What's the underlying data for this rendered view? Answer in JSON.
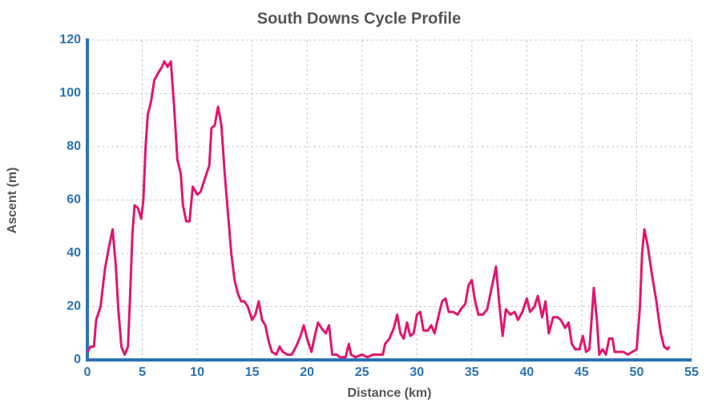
{
  "chart_data": {
    "type": "line",
    "title": "South Downs Cycle Profile",
    "x_label": "Distance (km)",
    "y_label": "Ascent (m)",
    "xlim": [
      0,
      55
    ],
    "xticks": [
      0,
      5,
      10,
      15,
      20,
      25,
      30,
      35,
      40,
      45,
      50,
      55
    ],
    "ylim": [
      0,
      120
    ],
    "yticks": [
      0,
      20,
      40,
      60,
      80,
      100,
      120
    ],
    "grid": true,
    "x": [
      0,
      0.3,
      0.6,
      0.8,
      1.2,
      1.6,
      2,
      2.3,
      2.6,
      2.8,
      3.1,
      3.4,
      3.7,
      3.9,
      4.1,
      4.3,
      4.6,
      4.9,
      5.1,
      5.3,
      5.5,
      5.8,
      6.1,
      6.5,
      6.8,
      7.0,
      7.3,
      7.6,
      7.9,
      8.2,
      8.5,
      8.7,
      9.0,
      9.3,
      9.6,
      10.0,
      10.3,
      10.7,
      11.1,
      11.3,
      11.6,
      11.9,
      12.2,
      12.5,
      12.8,
      13.1,
      13.4,
      13.7,
      14.0,
      14.3,
      14.6,
      15.0,
      15.3,
      15.6,
      15.9,
      16.2,
      16.5,
      16.8,
      17.2,
      17.5,
      17.8,
      18.2,
      18.6,
      19.0,
      19.4,
      19.7,
      20.0,
      20.4,
      20.7,
      21.0,
      21.3,
      21.7,
      22.0,
      22.3,
      22.7,
      23.0,
      23.5,
      23.8,
      24.0,
      24.4,
      25.0,
      25.5,
      26.0,
      26.5,
      26.9,
      27.1,
      27.5,
      27.9,
      28.2,
      28.5,
      28.8,
      29.1,
      29.4,
      29.7,
      30.0,
      30.3,
      30.6,
      31.0,
      31.3,
      31.6,
      32.0,
      32.3,
      32.6,
      32.9,
      33.3,
      33.7,
      34.0,
      34.4,
      34.7,
      35.0,
      35.3,
      35.6,
      36.0,
      36.4,
      36.8,
      37.2,
      37.5,
      37.8,
      38.1,
      38.5,
      38.9,
      39.2,
      39.6,
      40.0,
      40.3,
      40.7,
      41.0,
      41.4,
      41.7,
      42.0,
      42.4,
      42.8,
      43.1,
      43.5,
      43.8,
      44.1,
      44.4,
      44.8,
      45.1,
      45.4,
      45.7,
      45.9,
      46.1,
      46.4,
      46.6,
      46.9,
      47.2,
      47.5,
      47.8,
      48.0,
      48.4,
      48.8,
      49.2,
      49.6,
      50.0,
      50.3,
      50.5,
      50.7,
      51.0,
      51.4,
      51.8,
      52.2,
      52.5,
      52.8,
      53.0
    ],
    "series": [
      {
        "name": "Ascent",
        "color": "#e0166e",
        "values": [
          3,
          5,
          5,
          15,
          20,
          34,
          43,
          49,
          35,
          20,
          5,
          2,
          5,
          25,
          47,
          58,
          57,
          53,
          60,
          80,
          92,
          97,
          105,
          108,
          110,
          112,
          110,
          112,
          95,
          75,
          70,
          58,
          52,
          52,
          65,
          62,
          63,
          68,
          73,
          87,
          88,
          95,
          88,
          70,
          55,
          40,
          30,
          25,
          22,
          22,
          20,
          15,
          17,
          22,
          15,
          13,
          7,
          3,
          2,
          5,
          3,
          2,
          2,
          5,
          9,
          13,
          8,
          3,
          9,
          14,
          12,
          10,
          13,
          2,
          2,
          1,
          1,
          6,
          2,
          1,
          2,
          1,
          2,
          2,
          2,
          6,
          8,
          12,
          17,
          10,
          8,
          14,
          9,
          10,
          17,
          18,
          11,
          11,
          13,
          10,
          17,
          22,
          23,
          18,
          18,
          17,
          19,
          21,
          28,
          30,
          22,
          17,
          17,
          19,
          27,
          35,
          21,
          9,
          19,
          17,
          18,
          15,
          18,
          23,
          18,
          20,
          24,
          16,
          22,
          10,
          16,
          16,
          15,
          12,
          14,
          6,
          4,
          4,
          9,
          3,
          4,
          15,
          27,
          14,
          2,
          4,
          2,
          8,
          8,
          3,
          3,
          3,
          2,
          3,
          4,
          20,
          40,
          49,
          43,
          32,
          22,
          10,
          5,
          4,
          5
        ]
      }
    ]
  }
}
